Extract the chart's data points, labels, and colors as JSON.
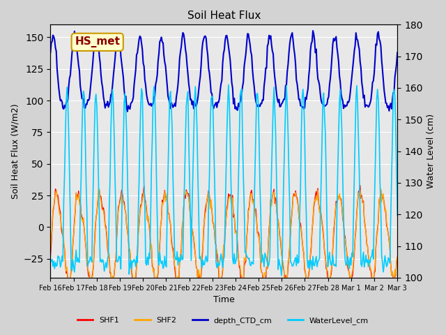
{
  "title": "Soil Heat Flux",
  "xlabel": "Time",
  "ylabel_left": "Soil Heat Flux (W/m2)",
  "ylabel_right": "Water Level (cm)",
  "ylim_left": [
    -40,
    160
  ],
  "ylim_right": [
    100,
    180
  ],
  "background_color": "#d3d3d3",
  "plot_bg_color": "#e8e8e8",
  "legend_labels": [
    "SHF1",
    "SHF2",
    "depth_CTD_cm",
    "WaterLevel_cm"
  ],
  "legend_colors": [
    "#ff0000",
    "#ffa500",
    "#0000cc",
    "#00ccff"
  ],
  "annotation_text": "HS_met",
  "annotation_bg": "#ffffcc",
  "annotation_border": "#cc9900",
  "annotation_text_color": "#8b0000",
  "xtick_labels": [
    "Feb 16",
    "Feb 17",
    "Feb 18",
    "Feb 19",
    "Feb 20",
    "Feb 21",
    "Feb 22",
    "Feb 23",
    "Feb 24",
    "Feb 25",
    "Feb 26",
    "Feb 27",
    "Feb 28",
    "Mar 1",
    "Mar 2",
    "Mar 3"
  ],
  "n_points": 420,
  "shf_base": -20,
  "shf_amplitude": 30,
  "depth_base": 110,
  "depth_amplitude": 35,
  "water_base": 115,
  "water_amplitude": 30
}
